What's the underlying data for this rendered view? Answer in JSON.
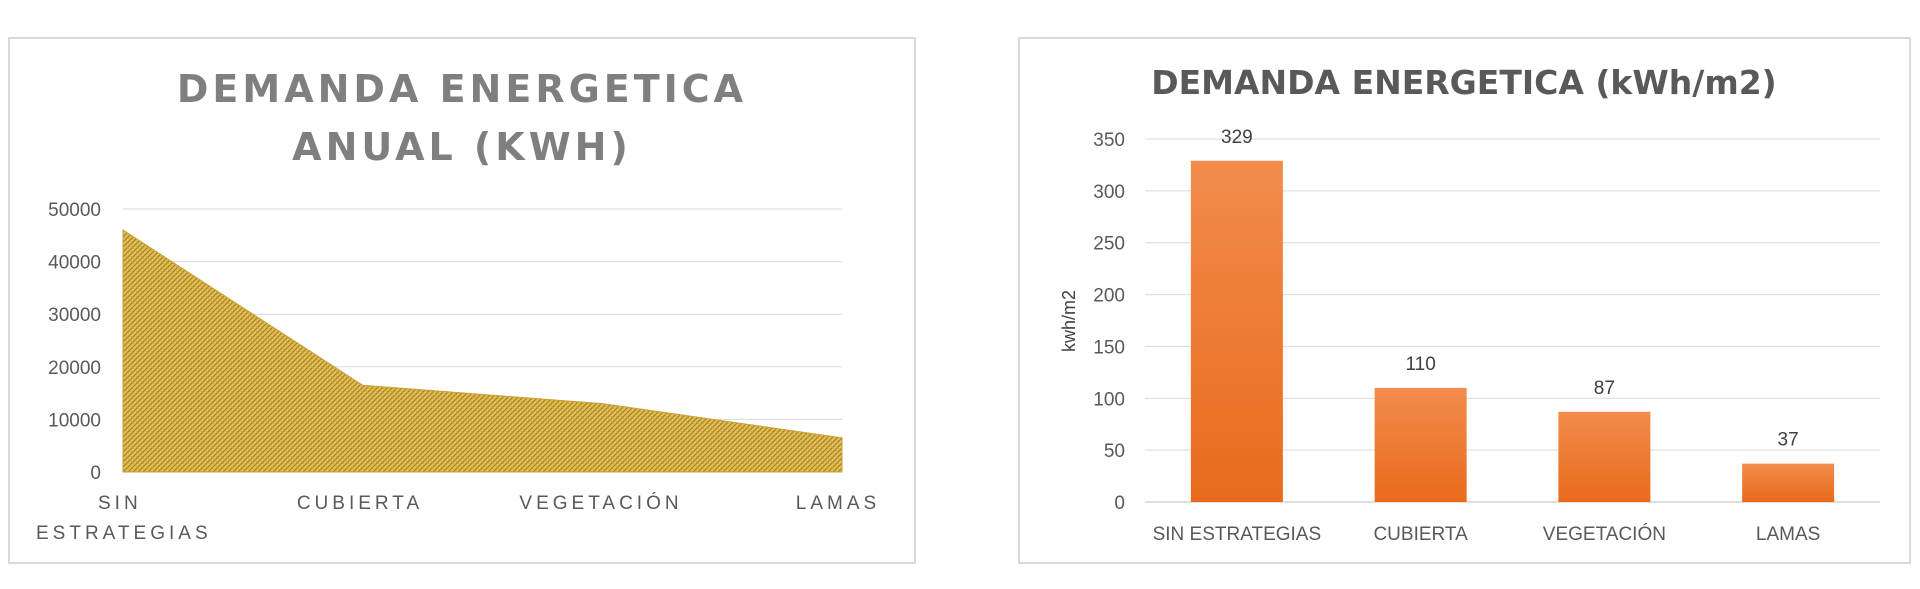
{
  "chart_data": [
    {
      "type": "area",
      "title_lines": [
        "DEMANDA ENERGETICA",
        "ANUAL (KWH)"
      ],
      "categories": [
        [
          "SIN",
          "ESTRATEGIAS"
        ],
        [
          "CUBIERTA"
        ],
        [
          "VEGETACIÓN"
        ],
        [
          "LAMAS"
        ]
      ],
      "values": [
        46000,
        16500,
        13000,
        6500
      ],
      "ylim": [
        0,
        50000
      ],
      "yticks": [
        "0",
        "10000",
        "20000",
        "30000",
        "40000",
        "50000"
      ],
      "grid": true,
      "fill_color": "#e3c05a",
      "pattern_color": "#a8801c"
    },
    {
      "type": "bar",
      "title": "DEMANDA ENERGETICA (kWh/m2)",
      "ylabel": "kwh/m2",
      "categories": [
        "SIN ESTRATEGIAS",
        "CUBIERTA",
        "VEGETACIÓN",
        "LAMAS"
      ],
      "values": [
        329,
        110,
        87,
        37
      ],
      "data_labels": [
        "329",
        "110",
        "87",
        "37"
      ],
      "ylim": [
        0,
        350
      ],
      "yticks": [
        "0",
        "50",
        "100",
        "150",
        "200",
        "250",
        "300",
        "350"
      ],
      "grid": true,
      "bar_color_top": "#f28c4c",
      "bar_color_bottom": "#e96a1c"
    }
  ]
}
